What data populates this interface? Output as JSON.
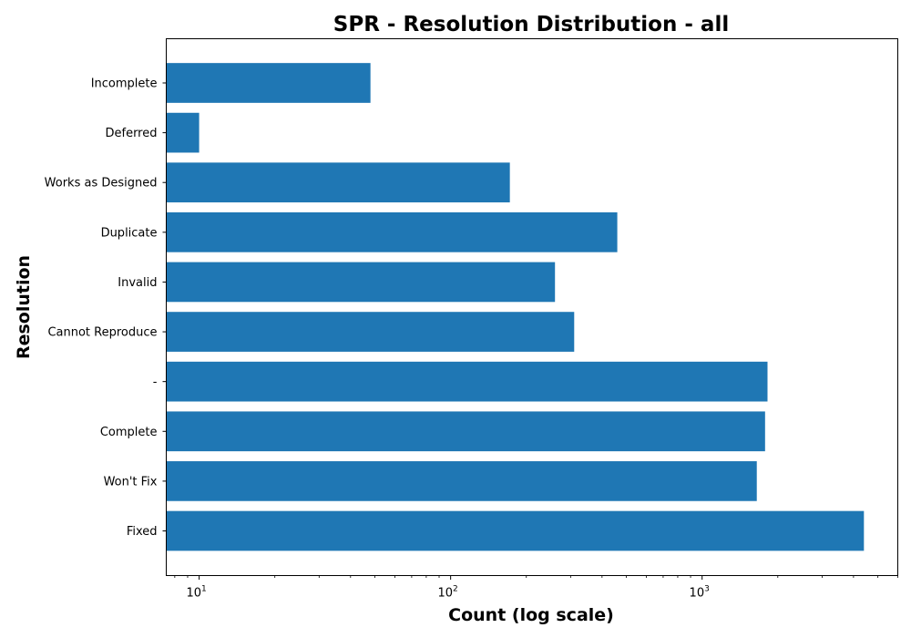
{
  "chart_data": {
    "type": "bar",
    "orientation": "horizontal",
    "title": "SPR - Resolution Distribution - all",
    "xlabel": "Count (log scale)",
    "ylabel": "Resolution",
    "x_scale": "log",
    "xlim": [
      7.4,
      6000
    ],
    "x_major_ticks": [
      {
        "value": 10,
        "base": "10",
        "exp": "1"
      },
      {
        "value": 100,
        "base": "10",
        "exp": "2"
      },
      {
        "value": 1000,
        "base": "10",
        "exp": "3"
      }
    ],
    "categories": [
      "Fixed",
      "Won't Fix",
      "Complete",
      "-",
      "Cannot Reproduce",
      "Invalid",
      "Duplicate",
      "Works as Designed",
      "Deferred",
      "Incomplete"
    ],
    "values": [
      4400,
      1650,
      1780,
      1820,
      310,
      260,
      460,
      172,
      10,
      48
    ],
    "bar_color": "#1f77b4",
    "grid": false,
    "legend": "none"
  }
}
